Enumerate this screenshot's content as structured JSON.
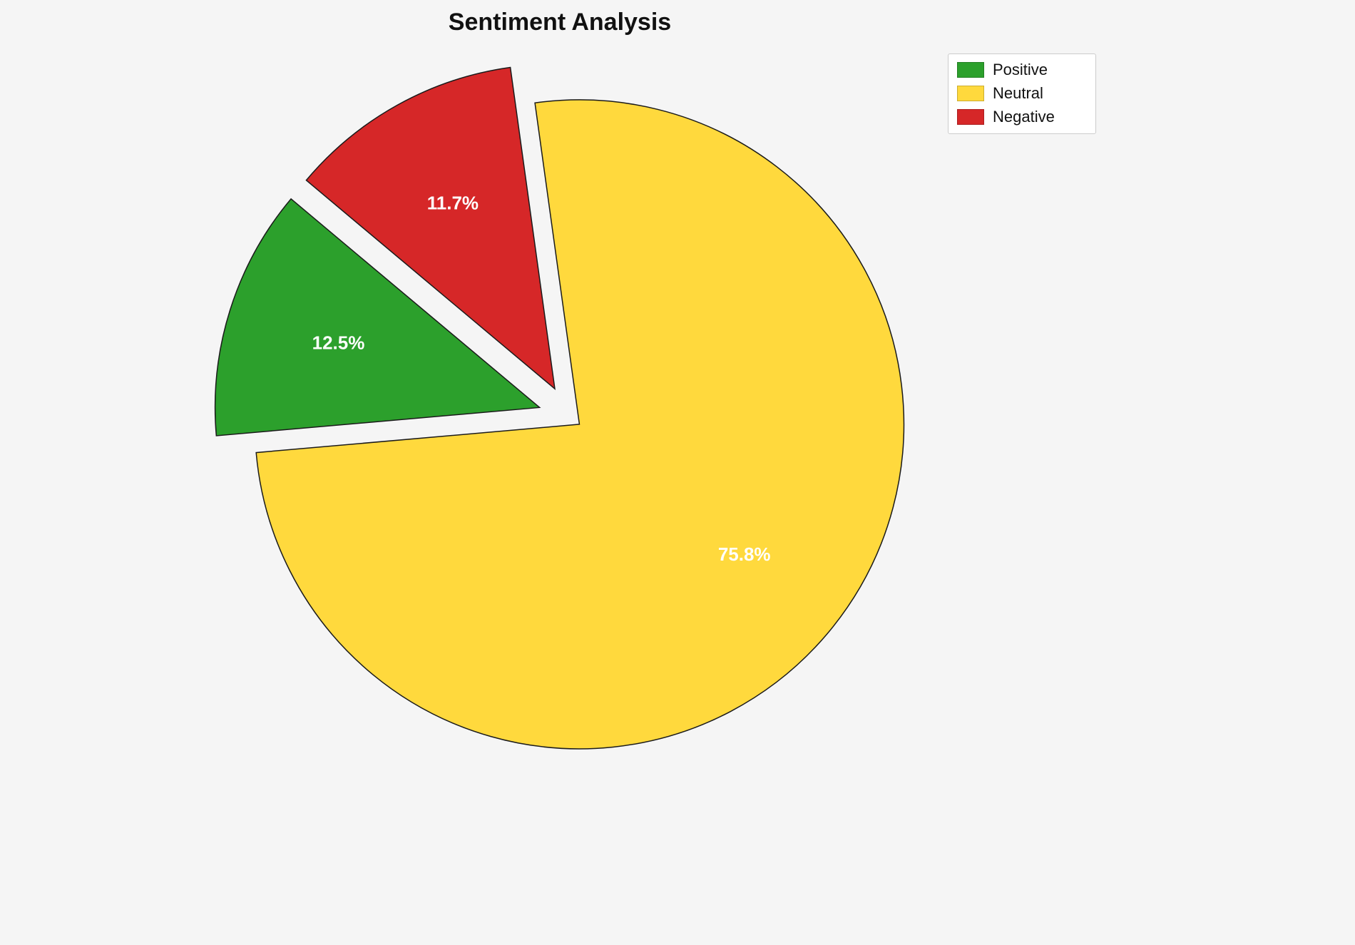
{
  "title": "Sentiment Analysis",
  "chart_data": {
    "type": "pie",
    "title": "Sentiment Analysis",
    "labels": [
      "Positive",
      "Neutral",
      "Negative"
    ],
    "values": [
      12.5,
      75.8,
      11.7
    ],
    "value_labels": [
      "12.5%",
      "75.8%",
      "11.7%"
    ],
    "colors": [
      "#2ca02c",
      "#ffd93d",
      "#d62728"
    ],
    "explode": [
      0.1,
      0.035,
      0.1
    ],
    "start_angle": 140,
    "counterclockwise": true,
    "edge_color": "#1a1a1a",
    "label_color": "#ffffff",
    "label_radius_fraction": 0.65,
    "background": "#f5f5f5",
    "legend": {
      "position": "upper right",
      "entries": [
        "Positive",
        "Neutral",
        "Negative"
      ]
    }
  }
}
